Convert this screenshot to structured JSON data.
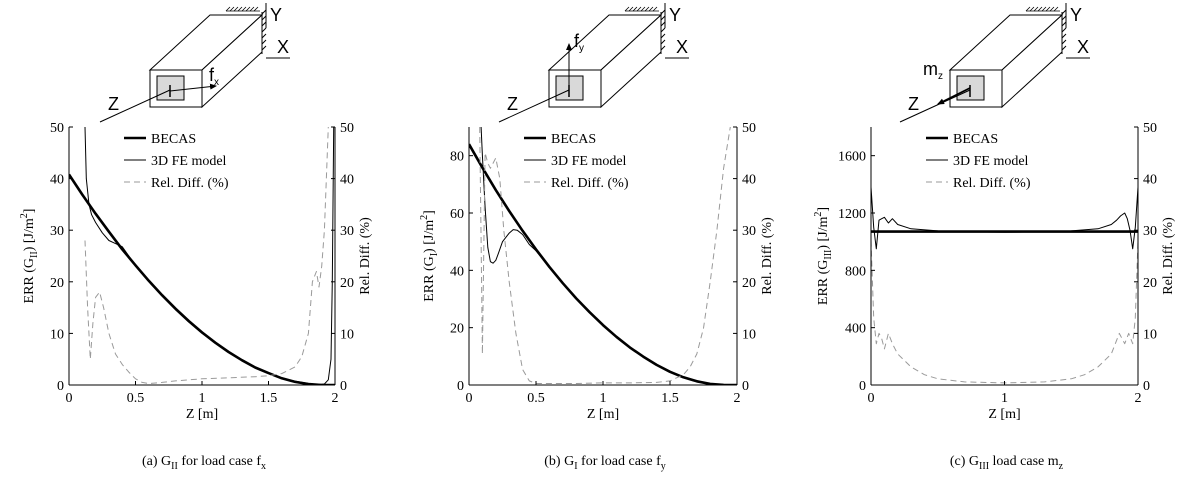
{
  "chart_data": [
    {
      "type": "line",
      "xlabel": "Z [m]",
      "ylabel_left": "ERR (G_II) [J/m^2]",
      "ylabel_right": "Rel. Diff. (%)",
      "xlim": [
        0,
        2
      ],
      "ylim_left": [
        0,
        50
      ],
      "ylim_right": [
        0,
        50
      ],
      "xticks": [
        0,
        0.5,
        1,
        1.5,
        2
      ],
      "yticks_left": [
        0,
        10,
        20,
        30,
        40,
        50
      ],
      "yticks_right": [
        0,
        10,
        20,
        30,
        40,
        50
      ],
      "legend": [
        "BECAS",
        "3D FE model",
        "Rel. Diff. (%)"
      ],
      "caption": "(a)  G_II for load case f_x",
      "beam": {
        "axis_y": "Y",
        "axis_x": "X",
        "axis_z": "Z",
        "load": "f_x"
      },
      "series": [
        {
          "name": "BECAS",
          "axis": "left",
          "style": "thick",
          "x": [
            0,
            0.1,
            0.2,
            0.3,
            0.4,
            0.5,
            0.6,
            0.7,
            0.8,
            0.9,
            1.0,
            1.1,
            1.2,
            1.3,
            1.4,
            1.5,
            1.6,
            1.7,
            1.8,
            1.9,
            2.0
          ],
          "y": [
            40.8,
            36.9,
            33.2,
            29.7,
            26.3,
            23.2,
            20.2,
            17.4,
            14.8,
            12.4,
            10.2,
            8.2,
            6.4,
            4.8,
            3.4,
            2.3,
            1.3,
            0.6,
            0.2,
            0.0,
            0.0
          ]
        },
        {
          "name": "3D FE model",
          "axis": "left",
          "style": "thin",
          "x": [
            0.12,
            0.13,
            0.15,
            0.17,
            0.2,
            0.25,
            0.3,
            0.35,
            0.4,
            0.45,
            0.5,
            0.6,
            0.7,
            0.8,
            0.9,
            1.0,
            1.2,
            1.4,
            1.6,
            1.8,
            1.88,
            1.92,
            1.95,
            1.97,
            1.98,
            1.99
          ],
          "y": [
            50,
            40,
            35,
            33,
            31.5,
            29.5,
            28,
            27.4,
            26.8,
            25,
            23,
            20,
            17.2,
            14.6,
            12.2,
            10,
            6.3,
            3.3,
            1.2,
            0.3,
            0.1,
            0.2,
            1,
            5,
            20,
            50
          ]
        },
        {
          "name": "Rel. Diff. (%)",
          "axis": "right",
          "style": "dashed",
          "x": [
            0.12,
            0.14,
            0.16,
            0.18,
            0.2,
            0.23,
            0.26,
            0.3,
            0.35,
            0.4,
            0.45,
            0.5,
            0.55,
            0.6,
            0.7,
            0.8,
            1.0,
            1.2,
            1.4,
            1.5,
            1.6,
            1.7,
            1.75,
            1.8,
            1.83,
            1.86,
            1.88,
            1.9,
            1.92,
            1.95
          ],
          "y": [
            28,
            15,
            5,
            12,
            17,
            18,
            15,
            10,
            6,
            4,
            2.5,
            1.2,
            0.5,
            0.3,
            0.5,
            0.8,
            1.2,
            1.4,
            1.6,
            1.8,
            2.2,
            3.5,
            5.5,
            10,
            20,
            22,
            19,
            23,
            30,
            50
          ]
        }
      ]
    },
    {
      "type": "line",
      "xlabel": "Z [m]",
      "ylabel_left": "ERR (G_I) [J/m^2]",
      "ylabel_right": "Rel. Diff. (%)",
      "xlim": [
        0,
        2
      ],
      "ylim_left": [
        0,
        90
      ],
      "ylim_right": [
        0,
        50
      ],
      "xticks": [
        0,
        0.5,
        1,
        1.5,
        2
      ],
      "yticks_left": [
        0,
        20,
        40,
        60,
        80
      ],
      "yticks_right": [
        0,
        10,
        20,
        30,
        40,
        50
      ],
      "legend": [
        "BECAS",
        "3D FE model",
        "Rel. Diff. (%)"
      ],
      "caption": "(b)  G_I for load case f_y",
      "beam": {
        "axis_y": "Y",
        "axis_x": "X",
        "axis_z": "Z",
        "load": "f_y"
      },
      "series": [
        {
          "name": "BECAS",
          "axis": "left",
          "style": "thick",
          "x": [
            0,
            0.1,
            0.2,
            0.3,
            0.4,
            0.5,
            0.6,
            0.7,
            0.8,
            0.9,
            1.0,
            1.1,
            1.2,
            1.3,
            1.4,
            1.5,
            1.6,
            1.7,
            1.8,
            1.9,
            2.0
          ],
          "y": [
            84,
            75.8,
            68,
            60.7,
            53.8,
            47.3,
            41.2,
            35.5,
            30.2,
            25.4,
            20.9,
            16.8,
            13.1,
            9.9,
            7.0,
            4.6,
            2.7,
            1.3,
            0.4,
            0.05,
            0.0
          ]
        },
        {
          "name": "3D FE model",
          "axis": "left",
          "style": "thin",
          "x": [
            0.09,
            0.1,
            0.12,
            0.14,
            0.16,
            0.18,
            0.2,
            0.22,
            0.25,
            0.3,
            0.33,
            0.36,
            0.4,
            0.45,
            0.5,
            0.6,
            0.8,
            1.0,
            1.2,
            1.4,
            1.6,
            1.8,
            1.9,
            2.0
          ],
          "y": [
            90,
            80,
            62,
            48,
            43,
            42.5,
            43.5,
            46,
            50,
            53,
            54.2,
            54,
            52.5,
            49,
            46.8,
            41,
            30,
            20.8,
            13,
            7,
            2.7,
            0.4,
            0.05,
            0.0
          ]
        },
        {
          "name": "Rel. Diff. (%)",
          "axis": "right",
          "style": "dashed",
          "x": [
            0.08,
            0.09,
            0.1,
            0.11,
            0.12,
            0.14,
            0.16,
            0.18,
            0.2,
            0.23,
            0.26,
            0.3,
            0.35,
            0.4,
            0.45,
            0.5,
            0.6,
            0.8,
            1.0,
            1.2,
            1.4,
            1.5,
            1.6,
            1.65,
            1.7,
            1.75,
            1.8,
            1.85,
            1.9,
            1.95
          ],
          "y": [
            50,
            28,
            6,
            25,
            45,
            43,
            42,
            43,
            44,
            40,
            30,
            20,
            10,
            3,
            0.8,
            0.3,
            0.3,
            0.3,
            0.4,
            0.4,
            0.5,
            0.8,
            2,
            3.5,
            6,
            11,
            20,
            30,
            42,
            50
          ]
        }
      ]
    },
    {
      "type": "line",
      "xlabel": "Z [m]",
      "ylabel_left": "ERR (G_III) [J/m^2]",
      "ylabel_right": "Rel. Diff. (%)",
      "xlim": [
        0,
        2
      ],
      "ylim_left": [
        0,
        1800
      ],
      "ylim_right": [
        0,
        50
      ],
      "xticks": [
        0,
        1,
        2
      ],
      "yticks_left": [
        0,
        400,
        800,
        1200,
        1600
      ],
      "yticks_right": [
        0,
        10,
        20,
        30,
        40,
        50
      ],
      "legend": [
        "BECAS",
        "3D FE model",
        "Rel. Diff. (%)"
      ],
      "caption": "(c)  G_III load case m_z",
      "beam": {
        "axis_y": "Y",
        "axis_x": "X",
        "axis_z": "Z",
        "load": "m_z"
      },
      "series": [
        {
          "name": "BECAS",
          "axis": "left",
          "style": "thick",
          "x": [
            0,
            2
          ],
          "y": [
            1070,
            1070
          ]
        },
        {
          "name": "3D FE model",
          "axis": "left",
          "style": "thin",
          "x": [
            0,
            0.02,
            0.04,
            0.06,
            0.08,
            0.1,
            0.13,
            0.16,
            0.2,
            0.3,
            0.5,
            0.8,
            1.0,
            1.2,
            1.5,
            1.7,
            1.8,
            1.84,
            1.87,
            1.9,
            1.92,
            1.94,
            1.96,
            1.98,
            2.0
          ],
          "y": [
            1380,
            1100,
            950,
            1150,
            1160,
            1170,
            1130,
            1160,
            1120,
            1090,
            1075,
            1068,
            1065,
            1068,
            1075,
            1090,
            1120,
            1150,
            1180,
            1200,
            1160,
            1080,
            950,
            1100,
            1380
          ]
        },
        {
          "name": "Rel. Diff. (%)",
          "axis": "right",
          "style": "dashed",
          "x": [
            0,
            0.02,
            0.04,
            0.06,
            0.08,
            0.1,
            0.13,
            0.16,
            0.2,
            0.3,
            0.4,
            0.5,
            0.7,
            1.0,
            1.3,
            1.5,
            1.6,
            1.7,
            1.8,
            1.86,
            1.9,
            1.93,
            1.96,
            1.98,
            2.0
          ],
          "y": [
            28,
            13,
            8,
            10,
            9,
            7,
            10,
            8,
            6,
            3.5,
            2,
            1.2,
            0.6,
            0.4,
            0.6,
            1.2,
            2,
            3.5,
            6,
            10,
            8,
            10,
            8,
            13,
            28
          ]
        }
      ]
    }
  ]
}
